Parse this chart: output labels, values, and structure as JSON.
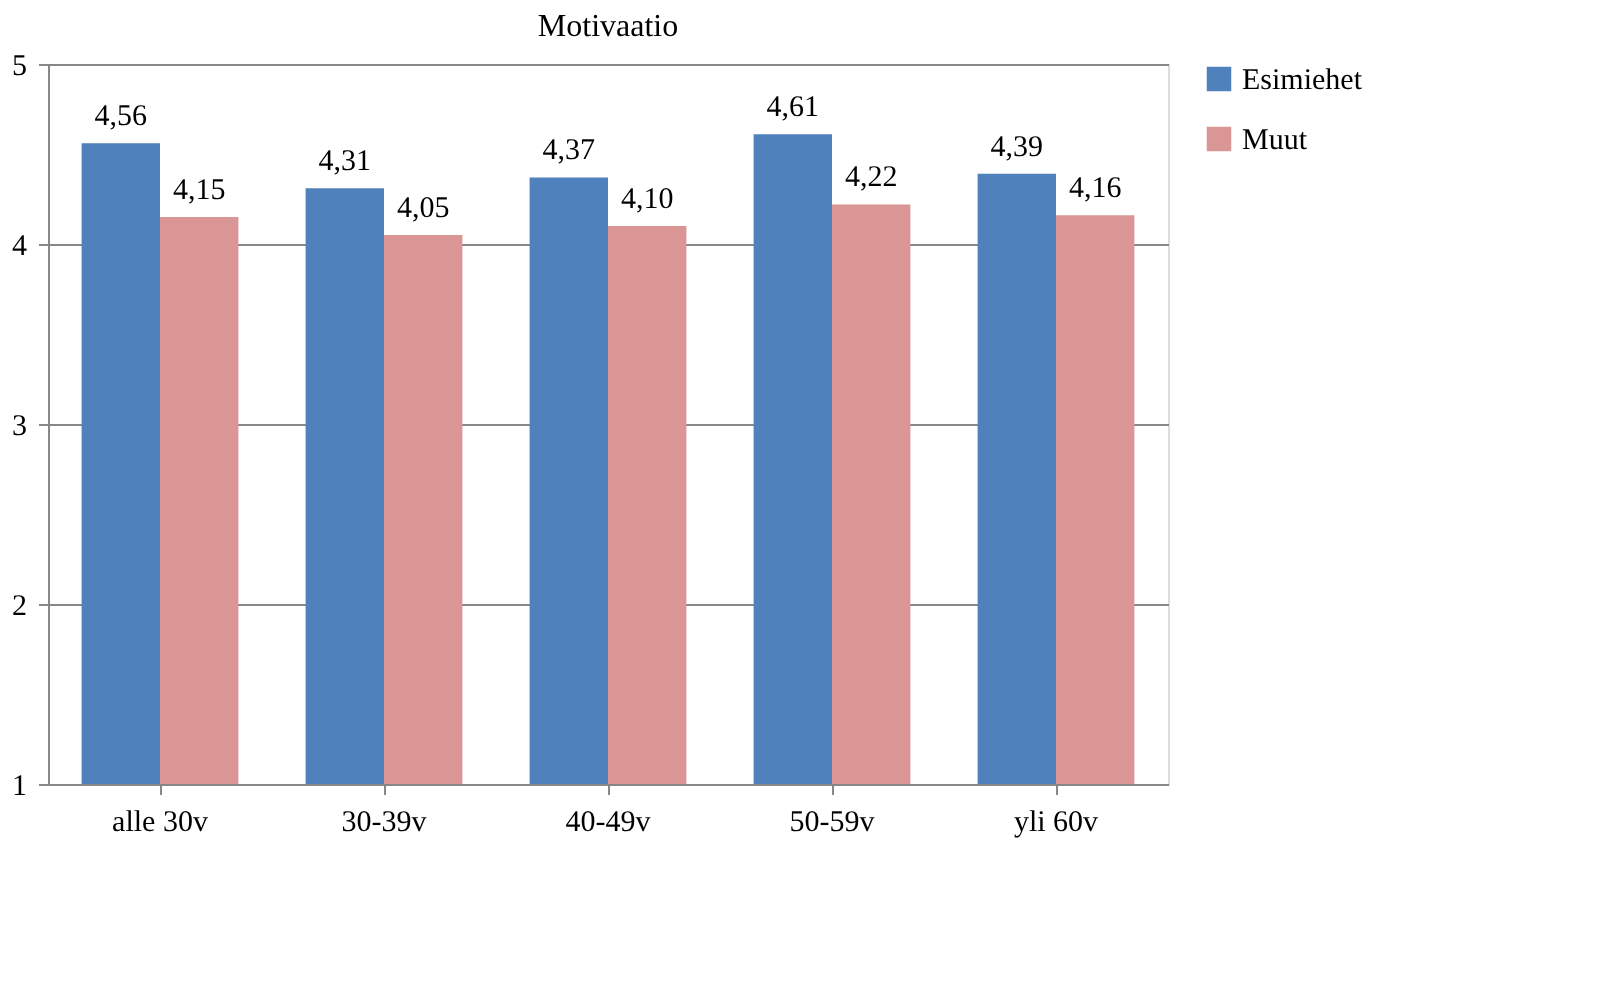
{
  "chart_data": {
    "type": "bar",
    "title": "Motivaatio",
    "categories": [
      "alle 30v",
      "30-39v",
      "40-49v",
      "50-59v",
      "yli 60v"
    ],
    "series": [
      {
        "name": "Esimiehet",
        "color": "#4f81bd",
        "values": [
          4.56,
          4.31,
          4.37,
          4.61,
          4.39
        ],
        "value_labels": [
          "4,56",
          "4,31",
          "4,37",
          "4,61",
          "4,39"
        ]
      },
      {
        "name": "Muut",
        "color": "#d99694",
        "values": [
          4.15,
          4.05,
          4.1,
          4.22,
          4.16
        ],
        "value_labels": [
          "4,15",
          "4,05",
          "4,10",
          "4,22",
          "4,16"
        ]
      }
    ],
    "ylim": [
      1,
      5
    ],
    "yticks": [
      1,
      2,
      3,
      4,
      5
    ],
    "grid": "y",
    "legend": "right"
  }
}
